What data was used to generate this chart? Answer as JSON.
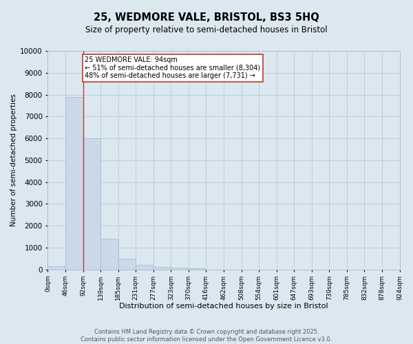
{
  "title_line1": "25, WEDMORE VALE, BRISTOL, BS3 5HQ",
  "title_line2": "Size of property relative to semi-detached houses in Bristol",
  "xlabel": "Distribution of semi-detached houses by size in Bristol",
  "ylabel": "Number of semi-detached properties",
  "bin_labels": [
    "0sqm",
    "46sqm",
    "92sqm",
    "139sqm",
    "185sqm",
    "231sqm",
    "277sqm",
    "323sqm",
    "370sqm",
    "416sqm",
    "462sqm",
    "508sqm",
    "554sqm",
    "601sqm",
    "647sqm",
    "693sqm",
    "739sqm",
    "785sqm",
    "832sqm",
    "878sqm",
    "924sqm"
  ],
  "bar_values": [
    150,
    7900,
    6000,
    1400,
    490,
    230,
    130,
    90,
    55,
    0,
    0,
    0,
    0,
    0,
    0,
    0,
    0,
    0,
    0,
    0
  ],
  "bar_color": "#c9d9e8",
  "bar_edge_color": "#a0b8cc",
  "property_line_x": 2,
  "property_line_color": "#c0392b",
  "annotation_text": "25 WEDMORE VALE: 94sqm\n← 51% of semi-detached houses are smaller (8,304)\n48% of semi-detached houses are larger (7,731) →",
  "annotation_box_color": "#ffffff",
  "annotation_box_edge_color": "#c0392b",
  "ylim": [
    0,
    10000
  ],
  "yticks": [
    0,
    1000,
    2000,
    3000,
    4000,
    5000,
    6000,
    7000,
    8000,
    9000,
    10000
  ],
  "grid_color": "#b0c4d8",
  "background_color": "#dce8f0",
  "footer_line1": "Contains HM Land Registry data © Crown copyright and database right 2025.",
  "footer_line2": "Contains public sector information licensed under the Open Government Licence v3.0."
}
